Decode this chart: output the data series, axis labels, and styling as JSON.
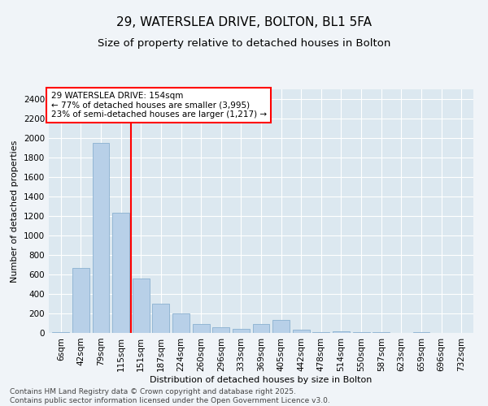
{
  "title": "29, WATERSLEA DRIVE, BOLTON, BL1 5FA",
  "subtitle": "Size of property relative to detached houses in Bolton",
  "xlabel": "Distribution of detached houses by size in Bolton",
  "ylabel": "Number of detached properties",
  "annotation_line1": "29 WATERSLEA DRIVE: 154sqm",
  "annotation_line2": "← 77% of detached houses are smaller (3,995)",
  "annotation_line3": "23% of semi-detached houses are larger (1,217) →",
  "footer_line1": "Contains HM Land Registry data © Crown copyright and database right 2025.",
  "footer_line2": "Contains public sector information licensed under the Open Government Licence v3.0.",
  "bar_color": "#b8d0e8",
  "bar_edge_color": "#8ab0d0",
  "bg_color": "#dce8f0",
  "grid_color": "#ffffff",
  "fig_bg_color": "#f0f4f8",
  "red_line_x": 3.5,
  "categories": [
    "6sqm",
    "42sqm",
    "79sqm",
    "115sqm",
    "151sqm",
    "187sqm",
    "224sqm",
    "260sqm",
    "296sqm",
    "333sqm",
    "369sqm",
    "405sqm",
    "442sqm",
    "478sqm",
    "514sqm",
    "550sqm",
    "587sqm",
    "623sqm",
    "659sqm",
    "696sqm",
    "732sqm"
  ],
  "values": [
    12,
    670,
    1950,
    1230,
    560,
    300,
    200,
    90,
    55,
    40,
    95,
    130,
    30,
    12,
    20,
    5,
    5,
    2,
    5,
    4,
    3
  ],
  "ylim": [
    0,
    2500
  ],
  "yticks": [
    0,
    200,
    400,
    600,
    800,
    1000,
    1200,
    1400,
    1600,
    1800,
    2000,
    2200,
    2400
  ],
  "title_fontsize": 11,
  "subtitle_fontsize": 9.5,
  "axis_label_fontsize": 8,
  "tick_fontsize": 7.5,
  "annotation_fontsize": 7.5,
  "footer_fontsize": 6.5
}
